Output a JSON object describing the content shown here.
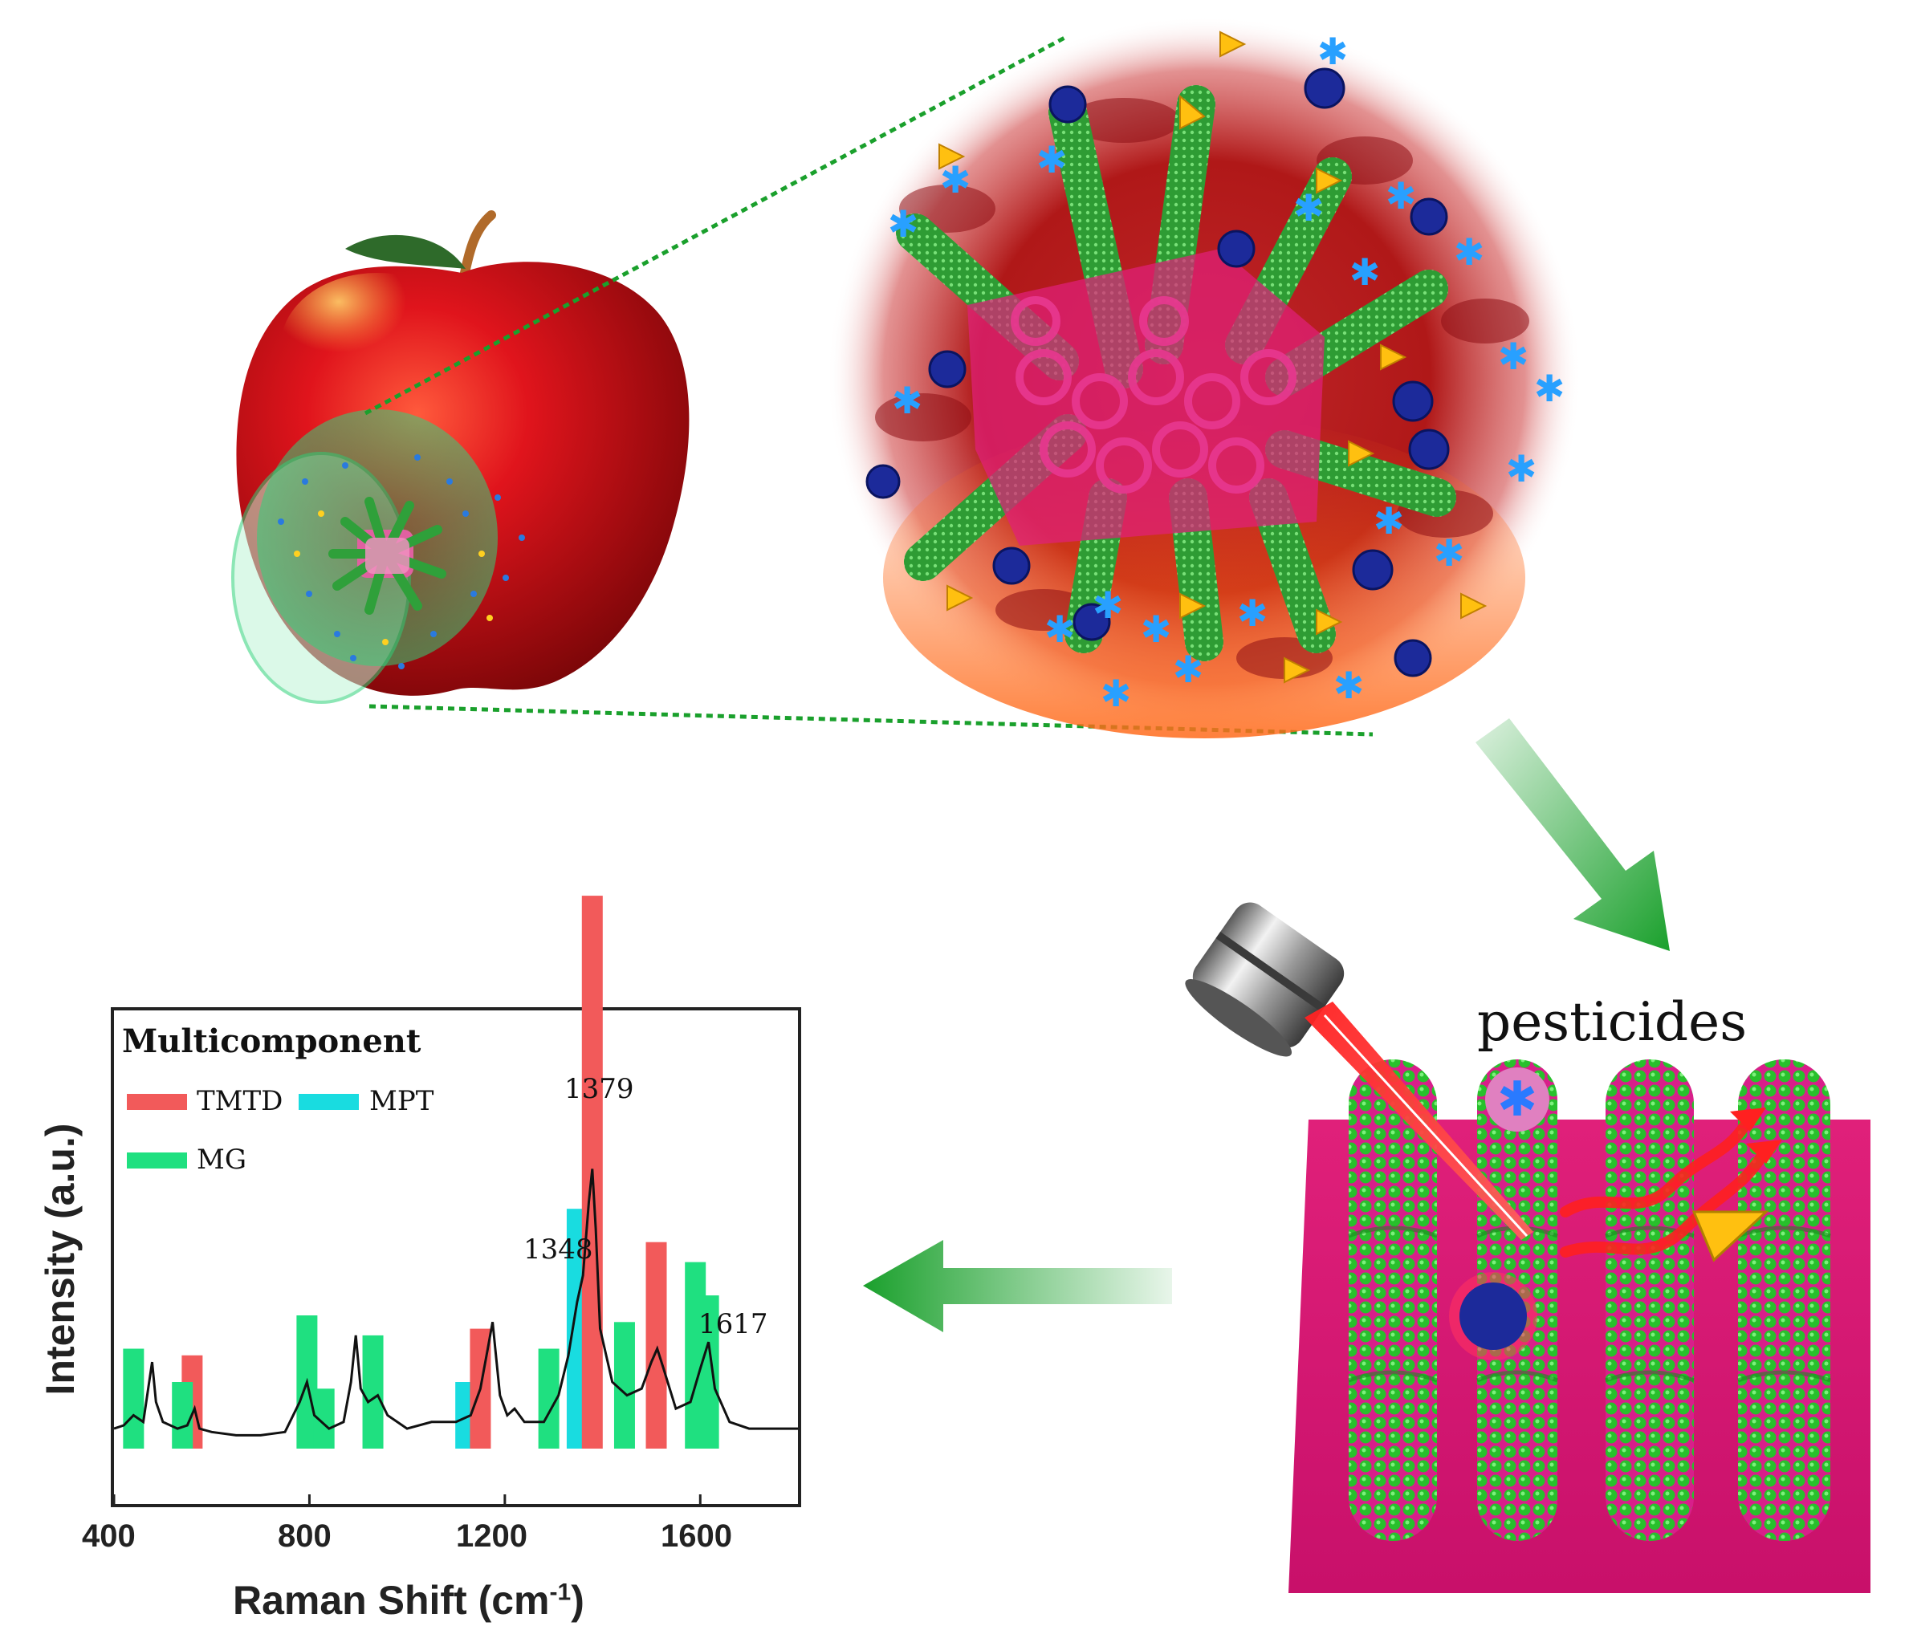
{
  "figure": {
    "pesticides_label": "pesticides",
    "colors": {
      "tmtd": "#f25a5a",
      "mpt": "#19dce0",
      "mg": "#1fe080",
      "substrate": "#e0207a",
      "nanorod": "#27b52b",
      "arrow": "#1aa02c",
      "laser": "#e81010"
    }
  },
  "spectrum": {
    "title": "Multicomponent",
    "legend": [
      {
        "name": "TMTD",
        "color": "#f25a5a"
      },
      {
        "name": "MPT",
        "color": "#19dce0"
      },
      {
        "name": "MG",
        "color": "#1fe080"
      }
    ],
    "peak_labels": [
      "1379",
      "1348",
      "1617"
    ],
    "xlabel_main": "Raman Shift (cm",
    "xlabel_sup": "-1",
    "xlabel_close": ")",
    "ylabel": "Intensity (a.u.)",
    "xticks": [
      "400",
      "800",
      "1200",
      "1600"
    ]
  },
  "chart_data": {
    "type": "line",
    "title": "Multicomponent",
    "xlabel": "Raman Shift (cm-1)",
    "ylabel": "Intensity (a.u.)",
    "xlim": [
      400,
      1800
    ],
    "ylim": [
      0,
      100
    ],
    "xticks": [
      400,
      800,
      1200,
      1600
    ],
    "series": [
      {
        "x": [
          400,
          420,
          440,
          460,
          470,
          478,
          486,
          500,
          530,
          550,
          565,
          575,
          600,
          650,
          700,
          750,
          780,
          795,
          810,
          840,
          870,
          885,
          895,
          905,
          920,
          940,
          960,
          1000,
          1050,
          1100,
          1130,
          1150,
          1165,
          1175,
          1190,
          1205,
          1220,
          1240,
          1280,
          1310,
          1330,
          1348,
          1360,
          1372,
          1379,
          1386,
          1395,
          1420,
          1450,
          1480,
          1500,
          1512,
          1525,
          1550,
          1580,
          1600,
          1617,
          1630,
          1660,
          1700,
          1750,
          1800
        ],
        "y": [
          6,
          7,
          10,
          8,
          18,
          26,
          14,
          8,
          6,
          7,
          12,
          6,
          5,
          4,
          4,
          5,
          14,
          20,
          10,
          6,
          8,
          20,
          34,
          18,
          14,
          16,
          10,
          6,
          8,
          8,
          10,
          18,
          30,
          38,
          16,
          10,
          12,
          8,
          8,
          16,
          28,
          44,
          52,
          74,
          84,
          66,
          36,
          20,
          16,
          18,
          26,
          30,
          24,
          12,
          14,
          24,
          32,
          18,
          8,
          6,
          6,
          6
        ]
      }
    ],
    "bands": [
      {
        "label": "MG",
        "center": 440
      },
      {
        "label": "TMTD",
        "center": 560
      },
      {
        "label": "MG",
        "center": 540
      },
      {
        "label": "MG",
        "center": 795
      },
      {
        "label": "MG",
        "center": 830
      },
      {
        "label": "MG",
        "center": 930
      },
      {
        "label": "MPT",
        "center": 1120
      },
      {
        "label": "TMTD",
        "center": 1150
      },
      {
        "label": "MG",
        "center": 1290
      },
      {
        "label": "MPT",
        "center": 1348
      },
      {
        "label": "TMTD",
        "center": 1379
      },
      {
        "label": "MG",
        "center": 1445
      },
      {
        "label": "TMTD",
        "center": 1510
      },
      {
        "label": "MG",
        "center": 1590
      },
      {
        "label": "MG",
        "center": 1617
      }
    ],
    "annotations": [
      "1348",
      "1379",
      "1617"
    ]
  }
}
